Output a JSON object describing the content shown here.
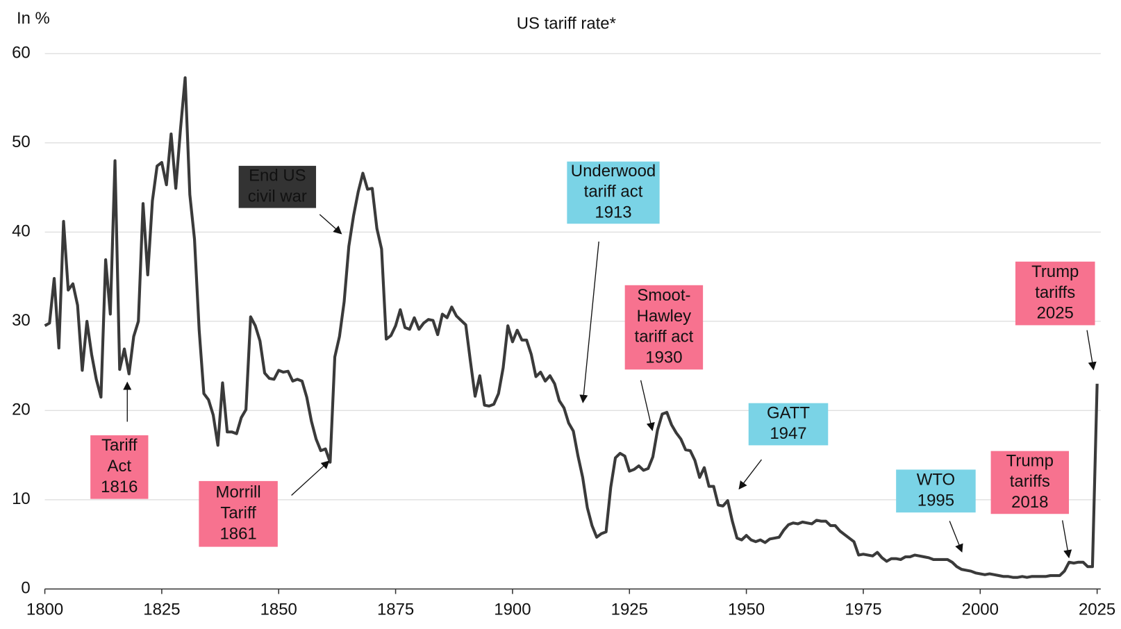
{
  "chart_data": {
    "type": "line",
    "title": "US tariff rate*",
    "y_label": "In %",
    "xlim": [
      1800,
      2025
    ],
    "xticks": [
      1800,
      1825,
      1850,
      1875,
      1900,
      1925,
      1950,
      1975,
      2000,
      2025
    ],
    "ylim": [
      0,
      60
    ],
    "yticks": [
      0,
      10,
      20,
      30,
      40,
      50,
      60
    ],
    "grid": true,
    "x": [
      1800,
      1801,
      1802,
      1803,
      1804,
      1805,
      1806,
      1807,
      1808,
      1809,
      1810,
      1811,
      1812,
      1813,
      1814,
      1815,
      1816,
      1817,
      1818,
      1819,
      1820,
      1821,
      1822,
      1823,
      1824,
      1825,
      1826,
      1827,
      1828,
      1829,
      1830,
      1831,
      1832,
      1833,
      1834,
      1835,
      1836,
      1837,
      1838,
      1839,
      1840,
      1841,
      1842,
      1843,
      1844,
      1845,
      1846,
      1847,
      1848,
      1849,
      1850,
      1851,
      1852,
      1853,
      1854,
      1855,
      1856,
      1857,
      1858,
      1859,
      1860,
      1861,
      1862,
      1863,
      1864,
      1865,
      1866,
      1867,
      1868,
      1869,
      1870,
      1871,
      1872,
      1873,
      1874,
      1875,
      1876,
      1877,
      1878,
      1879,
      1880,
      1881,
      1882,
      1883,
      1884,
      1885,
      1886,
      1887,
      1888,
      1889,
      1890,
      1891,
      1892,
      1893,
      1894,
      1895,
      1896,
      1897,
      1898,
      1899,
      1900,
      1901,
      1902,
      1903,
      1904,
      1905,
      1906,
      1907,
      1908,
      1909,
      1910,
      1911,
      1912,
      1913,
      1914,
      1915,
      1916,
      1917,
      1918,
      1919,
      1920,
      1921,
      1922,
      1923,
      1924,
      1925,
      1926,
      1927,
      1928,
      1929,
      1930,
      1931,
      1932,
      1933,
      1934,
      1935,
      1936,
      1937,
      1938,
      1939,
      1940,
      1941,
      1942,
      1943,
      1944,
      1945,
      1946,
      1947,
      1948,
      1949,
      1950,
      1951,
      1952,
      1953,
      1954,
      1955,
      1956,
      1957,
      1958,
      1959,
      1960,
      1961,
      1962,
      1963,
      1964,
      1965,
      1966,
      1967,
      1968,
      1969,
      1970,
      1971,
      1972,
      1973,
      1974,
      1975,
      1976,
      1977,
      1978,
      1979,
      1980,
      1981,
      1982,
      1983,
      1984,
      1985,
      1986,
      1987,
      1988,
      1989,
      1990,
      1991,
      1992,
      1993,
      1994,
      1995,
      1996,
      1997,
      1998,
      1999,
      2000,
      2001,
      2002,
      2003,
      2004,
      2005,
      2006,
      2007,
      2008,
      2009,
      2010,
      2011,
      2012,
      2013,
      2014,
      2015,
      2016,
      2017,
      2018,
      2019,
      2020,
      2021,
      2022,
      2023,
      2024,
      2025
    ],
    "series": [
      {
        "color": "#3a3a3a",
        "values": [
          29.5,
          29.8,
          34.8,
          27,
          41.2,
          33.5,
          34.2,
          31.8,
          24.5,
          30,
          26.3,
          23.5,
          21.5,
          36.9,
          30.8,
          48,
          24.6,
          26.9,
          24.1,
          28.3,
          30,
          43.2,
          35.2,
          43.5,
          47.4,
          47.8,
          45.3,
          51,
          44.9,
          51.5,
          57.3,
          44.2,
          39.2,
          29,
          21.9,
          21.2,
          19.5,
          16.1,
          23.1,
          17.6,
          17.6,
          17.4,
          19.2,
          20.1,
          30.5,
          29.5,
          27.8,
          24.2,
          23.6,
          23.5,
          24.5,
          24.3,
          24.4,
          23.3,
          23.5,
          23.3,
          21.5,
          18.8,
          16.8,
          15.5,
          15.7,
          14.2,
          26,
          28.3,
          32.2,
          38.4,
          41.8,
          44.5,
          46.6,
          44.8,
          44.9,
          40.4,
          38.1,
          28,
          28.4,
          29.5,
          31.3,
          29.3,
          29.1,
          30.4,
          29.1,
          29.8,
          30.2,
          30.1,
          28.5,
          30.8,
          30.4,
          31.6,
          30.6,
          30.1,
          29.6,
          25.5,
          21.6,
          23.9,
          20.6,
          20.5,
          20.7,
          21.9,
          24.8,
          29.5,
          27.7,
          29,
          27.9,
          27.9,
          26.3,
          23.8,
          24.3,
          23.3,
          23.9,
          23,
          21.1,
          20.3,
          18.6,
          17.7,
          14.9,
          12.5,
          9.1,
          7.1,
          5.8,
          6.2,
          6.4,
          11.4,
          14.7,
          15.2,
          14.9,
          13.2,
          13.4,
          13.8,
          13.3,
          13.5,
          14.8,
          17.8,
          19.6,
          19.8,
          18.4,
          17.5,
          16.8,
          15.6,
          15.5,
          14.4,
          12.5,
          13.6,
          11.5,
          11.5,
          9.4,
          9.3,
          9.9,
          7.6,
          5.7,
          5.5,
          6,
          5.5,
          5.3,
          5.5,
          5.2,
          5.6,
          5.7,
          5.8,
          6.6,
          7.2,
          7.4,
          7.3,
          7.5,
          7.4,
          7.3,
          7.7,
          7.6,
          7.6,
          7.1,
          7.1,
          6.5,
          6.1,
          5.7,
          5.3,
          3.8,
          3.9,
          3.8,
          3.7,
          4.1,
          3.5,
          3.1,
          3.4,
          3.4,
          3.3,
          3.6,
          3.6,
          3.8,
          3.7,
          3.6,
          3.5,
          3.3,
          3.3,
          3.3,
          3.3,
          3,
          2.5,
          2.2,
          2.1,
          2,
          1.8,
          1.7,
          1.6,
          1.7,
          1.6,
          1.5,
          1.4,
          1.4,
          1.3,
          1.3,
          1.4,
          1.3,
          1.4,
          1.4,
          1.4,
          1.4,
          1.5,
          1.5,
          1.5,
          2,
          3,
          2.9,
          3,
          3,
          2.5,
          2.5,
          23
        ]
      }
    ],
    "annotations": [
      {
        "lines": [
          "Tariff",
          "Act",
          "1816"
        ],
        "color": "#f7728f"
      },
      {
        "lines": [
          "Morrill",
          "Tariff",
          "1861"
        ],
        "color": "#f7728f"
      },
      {
        "lines": [
          "End US",
          "civil war"
        ],
        "color": "#333333"
      },
      {
        "lines": [
          "Underwood",
          "tariff act",
          "1913"
        ],
        "color": "#7ad3e6"
      },
      {
        "lines": [
          "Smoot-",
          "Hawley",
          "tariff act",
          "1930"
        ],
        "color": "#f7728f"
      },
      {
        "lines": [
          "GATT",
          "1947"
        ],
        "color": "#7ad3e6"
      },
      {
        "lines": [
          "WTO",
          "1995"
        ],
        "color": "#7ad3e6"
      },
      {
        "lines": [
          "Trump",
          "tariffs",
          "2018"
        ],
        "color": "#f7728f"
      },
      {
        "lines": [
          "Trump",
          "tariffs",
          "2025"
        ],
        "color": "#f7728f"
      }
    ]
  }
}
